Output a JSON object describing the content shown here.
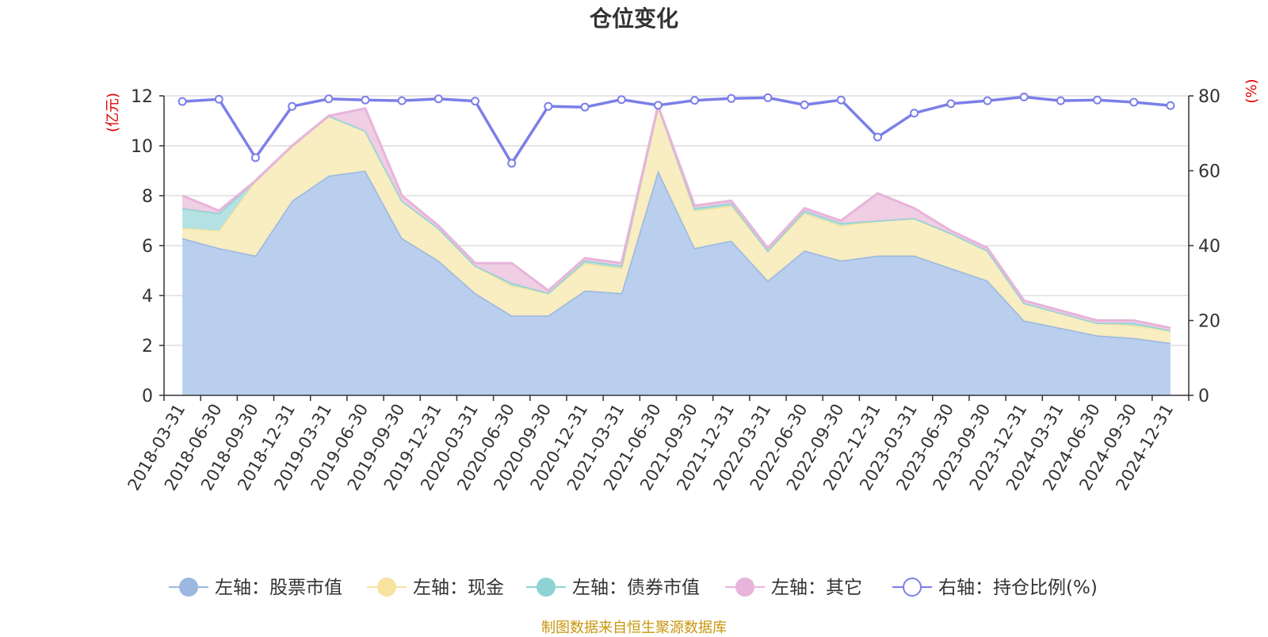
{
  "chart_data": {
    "type": "area",
    "title": "仓位变化",
    "left_axis_unit": "(亿元)",
    "right_axis_unit": "(%)",
    "left_ylim": [
      0,
      12
    ],
    "left_yticks": [
      0,
      2,
      4,
      6,
      8,
      10,
      12
    ],
    "right_ylim": [
      0,
      80
    ],
    "right_yticks": [
      0,
      20,
      40,
      60,
      80
    ],
    "grid": true,
    "legend_position": "bottom",
    "x": [
      "2018-03-31",
      "2018-06-30",
      "2018-09-30",
      "2018-12-31",
      "2019-03-31",
      "2019-06-30",
      "2019-09-30",
      "2019-12-31",
      "2020-03-31",
      "2020-06-30",
      "2020-09-30",
      "2020-12-31",
      "2021-03-31",
      "2021-06-30",
      "2021-09-30",
      "2021-12-31",
      "2022-03-31",
      "2022-06-30",
      "2022-09-30",
      "2022-12-31",
      "2023-03-31",
      "2023-06-30",
      "2023-09-30",
      "2023-12-31",
      "2024-03-31",
      "2024-06-30",
      "2024-09-30",
      "2024-12-31"
    ],
    "series": [
      {
        "name": "左轴：股票市值",
        "axis": "left",
        "kind": "area",
        "color": "#9ab8e0",
        "fill": "#b6cced",
        "values": [
          6.3,
          5.9,
          5.6,
          7.8,
          8.8,
          9.0,
          6.3,
          5.4,
          4.1,
          3.2,
          3.2,
          4.2,
          4.1,
          9.0,
          5.9,
          6.2,
          4.6,
          5.8,
          5.4,
          5.6,
          5.6,
          5.1,
          4.6,
          3.0,
          2.7,
          2.4,
          2.3,
          2.1
        ]
      },
      {
        "name": "左轴：现金",
        "axis": "left",
        "kind": "area",
        "color": "#f7e3a0",
        "fill": "#f9ecbf",
        "values": [
          0.4,
          0.7,
          3.0,
          2.2,
          2.4,
          1.6,
          1.5,
          1.3,
          1.1,
          1.2,
          0.9,
          1.1,
          1.0,
          2.6,
          1.5,
          1.4,
          1.2,
          1.5,
          1.4,
          1.4,
          1.5,
          1.4,
          1.2,
          0.7,
          0.6,
          0.5,
          0.5,
          0.5
        ]
      },
      {
        "name": "左轴：债券市值",
        "axis": "left",
        "kind": "area",
        "color": "#8ed3d3",
        "fill": "#b0e0e0",
        "values": [
          0.8,
          0.7,
          0,
          0,
          0,
          0,
          0,
          0,
          0,
          0.1,
          0.0,
          0.1,
          0.1,
          0,
          0.1,
          0.1,
          0.0,
          0.1,
          0.1,
          0,
          0,
          0,
          0,
          0,
          0,
          0,
          0.1,
          0.0
        ]
      },
      {
        "name": "左轴：其它",
        "axis": "left",
        "kind": "area",
        "color": "#e8b4da",
        "fill": "#efcbe3",
        "values": [
          0.5,
          0.1,
          0,
          0,
          0,
          0.9,
          0.2,
          0.1,
          0.1,
          0.8,
          0.1,
          0.1,
          0.1,
          0,
          0.1,
          0.1,
          0.1,
          0.1,
          0.1,
          1.1,
          0.4,
          0.1,
          0.1,
          0.1,
          0.1,
          0.1,
          0.1,
          0.1
        ]
      },
      {
        "name": "右轴：持仓比例(%)",
        "axis": "right",
        "kind": "line",
        "color": "#7b7fe8",
        "values": [
          78.5,
          79.1,
          63.5,
          77.2,
          79.2,
          78.9,
          78.7,
          79.2,
          78.6,
          62.0,
          77.2,
          77.0,
          79.0,
          77.5,
          78.8,
          79.3,
          79.5,
          77.6,
          78.9,
          69.0,
          75.4,
          77.9,
          78.7,
          79.7,
          78.7,
          78.9,
          78.3,
          77.4
        ]
      }
    ]
  },
  "footer_text": "制图数据来自恒生聚源数据库"
}
